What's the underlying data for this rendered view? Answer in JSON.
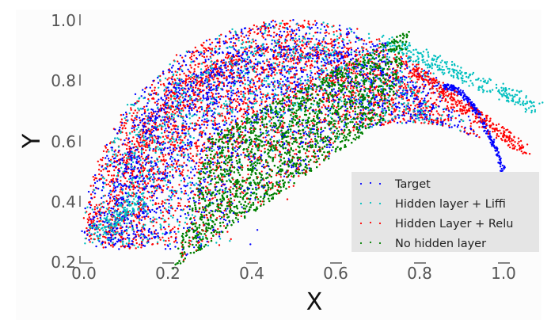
{
  "chart_data": {
    "type": "scatter",
    "title": "",
    "xlabel": "X",
    "ylabel": "Y",
    "xlim": [
      0.0,
      1.07
    ],
    "ylim": [
      0.2,
      1.02
    ],
    "grid": false,
    "legend_position": "lower right",
    "x_ticks": [
      "0.0",
      "0.2",
      "0.4",
      "0.6",
      "0.8",
      "1.0"
    ],
    "y_ticks": [
      "0.2",
      "0.4",
      "0.6",
      "0.8",
      "1.0"
    ],
    "series": [
      {
        "name": "Target",
        "color": "#0000ff",
        "shape": "filled half-ellipse arc, x 0.0-1.0, y 0.25-1.0, tail ending near (1.0, 0.5)"
      },
      {
        "name": "Hidden layer + Liffi",
        "color": "#00bfbf",
        "shape": "half-ellipse similar to target, with outliers extending to x≈1.07, y≈0.7 and lower-left near (0.03, 0.27)"
      },
      {
        "name": "Hidden Layer + Relu",
        "color": "#ff0000",
        "shape": "half-ellipse similar to target, tail extending to (1.05, 0.57)"
      },
      {
        "name": "No hidden layer",
        "color": "#008000",
        "shape": "parallelogram from (0.21, 0.25) to (0.76, 0.96)"
      }
    ]
  },
  "axes": {
    "x_title": "X",
    "y_title": "Y",
    "x_ticks": [
      {
        "label": "0.0",
        "value": 0.0
      },
      {
        "label": "0.2",
        "value": 0.2
      },
      {
        "label": "0.4",
        "value": 0.4
      },
      {
        "label": "0.6",
        "value": 0.6
      },
      {
        "label": "0.8",
        "value": 0.8
      },
      {
        "label": "1.0",
        "value": 1.0
      }
    ],
    "y_ticks": [
      {
        "label": "0.2",
        "value": 0.2
      },
      {
        "label": "0.4",
        "value": 0.4
      },
      {
        "label": "0.6",
        "value": 0.6
      },
      {
        "label": "0.8",
        "value": 0.8
      },
      {
        "label": "1.0",
        "value": 1.0
      }
    ]
  },
  "legend": {
    "items": [
      {
        "label": "Target",
        "color": "#0000ff"
      },
      {
        "label": "Hidden layer + Liffi",
        "color": "#00bfbf"
      },
      {
        "label": "Hidden Layer + Relu",
        "color": "#ff0000"
      },
      {
        "label": "No hidden layer",
        "color": "#008000"
      }
    ]
  },
  "colors": {
    "background": "#fcfcfc",
    "legend_bg": "#e5e5e5",
    "tick_color": "#555555"
  }
}
